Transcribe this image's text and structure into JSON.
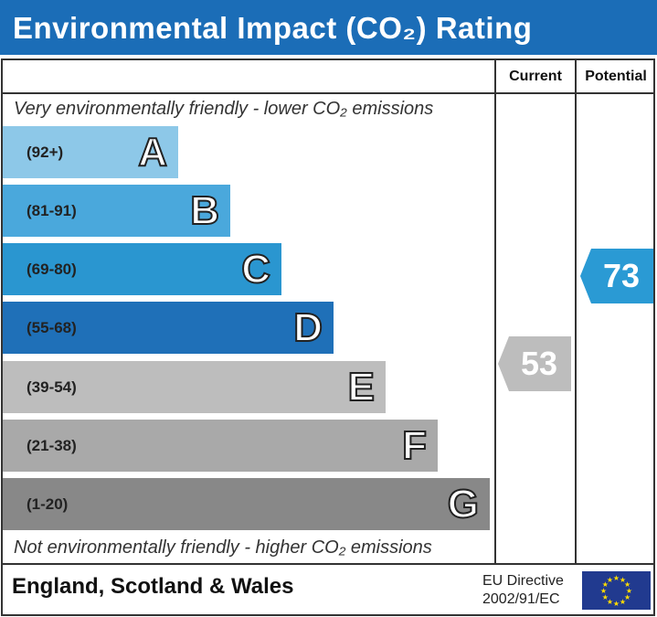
{
  "title": "Environmental Impact (CO₂) Rating",
  "columns": {
    "current": "Current",
    "potential": "Potential"
  },
  "top_note": "Very environmentally friendly - lower CO₂ emissions",
  "bottom_note": "Not environmentally friendly - higher CO₂ emissions",
  "footer": {
    "region": "England, Scotland & Wales",
    "directive_line1": "EU Directive",
    "directive_line2": "2002/91/EC"
  },
  "chart_data": {
    "type": "bar",
    "title": "Environmental Impact (CO₂) Rating",
    "bands": [
      {
        "letter": "A",
        "range": "(92+)",
        "color": "#8dc8e8"
      },
      {
        "letter": "B",
        "range": "(81-91)",
        "color": "#4aa8dc"
      },
      {
        "letter": "C",
        "range": "(69-80)",
        "color": "#2a96d0"
      },
      {
        "letter": "D",
        "range": "(55-68)",
        "color": "#1f70b8"
      },
      {
        "letter": "E",
        "range": "(39-54)",
        "color": "#bdbdbd"
      },
      {
        "letter": "F",
        "range": "(21-38)",
        "color": "#a9a9a9"
      },
      {
        "letter": "G",
        "range": "(1-20)",
        "color": "#888888"
      }
    ],
    "current": {
      "value": 53,
      "band": "E",
      "color": "#bdbdbd"
    },
    "potential": {
      "value": 73,
      "band": "C",
      "color": "#2a9ad4"
    }
  }
}
